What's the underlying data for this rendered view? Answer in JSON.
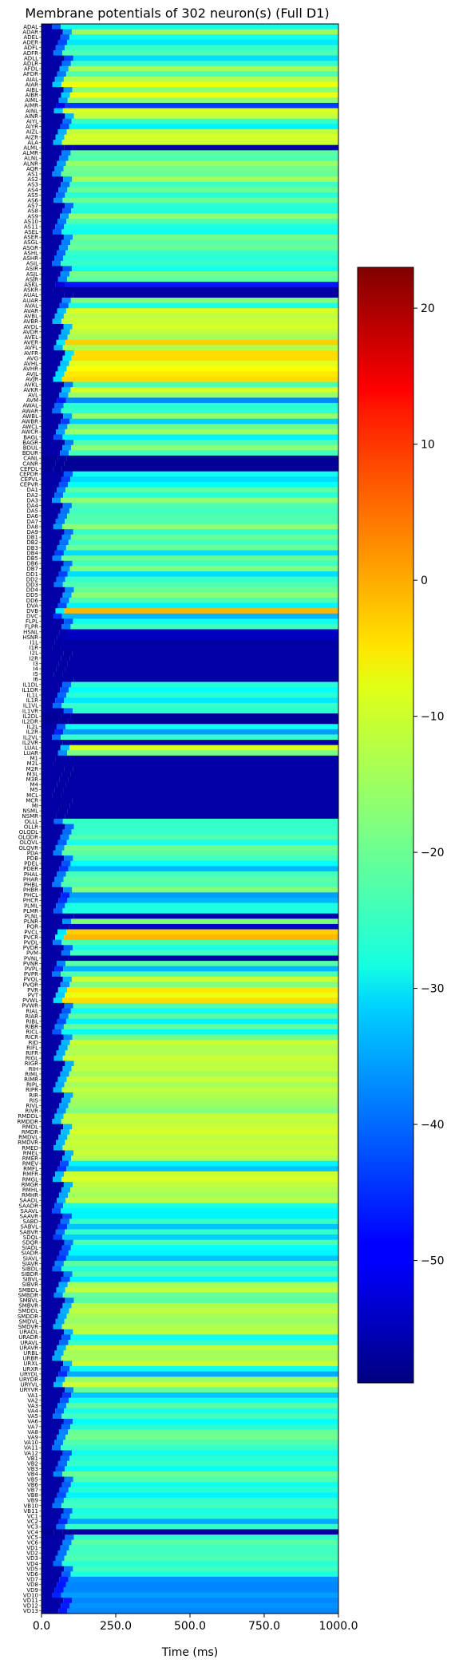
{
  "chart_data": {
    "type": "heatmap",
    "title": "Membrane potentials of 302 neuron(s) (Full D1)",
    "xlabel": "Time (ms)",
    "ylabel": "",
    "x_ticks": [
      "0.0",
      "250.0",
      "500.0",
      "750.0",
      "1000.0"
    ],
    "x_tick_values": [
      0,
      250,
      500,
      750,
      1000
    ],
    "xlim": [
      0,
      1000
    ],
    "colormap": "jet",
    "color_range": [
      -59,
      23
    ],
    "colorbar_ticks": [
      "20",
      "10",
      "0",
      "−10",
      "−20",
      "−30",
      "−40",
      "−50"
    ],
    "colorbar_tick_values": [
      20,
      10,
      0,
      -10,
      -20,
      -30,
      -40,
      -50
    ],
    "neuron_count": 302,
    "neuron_labels_visible": [
      "ADAL",
      "ADAR",
      "ADEL",
      "ADER",
      "ADFL",
      "ADFR",
      "ADLL",
      "ADLR",
      "AFDL",
      "AFDR",
      "AIAL",
      "AIAR",
      "AIBL",
      "AIBR",
      "AIML",
      "AIMR",
      "AINL",
      "AINR",
      "AIYL",
      "AIYR",
      "AIZL",
      "AIZR",
      "ALA",
      "ALML",
      "ALMR",
      "ALNL",
      "ALNR",
      "AQR",
      "AS1",
      "AS2",
      "AS3",
      "AS4",
      "AS5",
      "AS6",
      "AS7",
      "AS8",
      "AS9",
      "AS10",
      "AS11",
      "ASEL",
      "ASER",
      "ASGL",
      "ASGR",
      "ASHL",
      "ASHR",
      "ASIL",
      "ASIR",
      "ASJL",
      "ASJR",
      "ASKL",
      "ASKR",
      "AUAL",
      "AUAR",
      "AVAL",
      "AVAR",
      "AVBL",
      "AVBR",
      "AVDL",
      "AVDR",
      "AVEL",
      "AVER",
      "AVFL",
      "AVFR",
      "AVG",
      "AVHL",
      "AVHR",
      "AVJL",
      "AVJR",
      "AVKL",
      "AVKR",
      "AVL",
      "AVM",
      "AWAL",
      "AWAR",
      "AWBL",
      "AWBR",
      "AWCL",
      "AWCR",
      "BAGL",
      "BAGR",
      "BDUL",
      "BDUR",
      "CANL",
      "CANR",
      "CEPDL",
      "CEPDR",
      "CEPVL",
      "CEPVR",
      "DA1",
      "DA2",
      "DA3",
      "DA4",
      "DA5",
      "DA6",
      "DA7",
      "DA8",
      "DA9",
      "DB1",
      "DB2",
      "DB3",
      "DB4",
      "DB5",
      "DB6",
      "DB7",
      "DD1",
      "DD2",
      "DD3",
      "DD4",
      "DD5",
      "DD6",
      "DVA",
      "DVB",
      "DVC",
      "FLPL",
      "FLPR",
      "HSNL",
      "HSNR",
      "I1L",
      "I1R",
      "I2L",
      "I2R",
      "I3",
      "I4",
      "I5",
      "I6",
      "IL1DL",
      "IL1DR",
      "IL1L",
      "IL1R",
      "IL1VL",
      "IL1VR",
      "IL2DL",
      "IL2DR",
      "IL2L",
      "IL2R",
      "IL2VL",
      "IL2VR",
      "LUAL",
      "LUAR",
      "M1",
      "M2L",
      "M2R",
      "M3L",
      "M3R",
      "M4",
      "M5",
      "MCL",
      "MCR",
      "MI",
      "NSML",
      "NSMR",
      "OLLL",
      "OLLR",
      "OLQDL",
      "OLQDR",
      "OLQVL",
      "OLQVR",
      "PDA",
      "PDB",
      "PDEL",
      "PDER",
      "PHAL",
      "PHAR",
      "PHBL",
      "PHBR",
      "PHCL",
      "PHCR",
      "PLML",
      "PLMR",
      "PLNL",
      "PLNR",
      "PQR",
      "PVCL",
      "PVCR",
      "PVDL",
      "PVDR",
      "PVM",
      "PVNL",
      "PVNR",
      "PVPL",
      "PVPR",
      "PVQL",
      "PVQR",
      "PVR",
      "PVT",
      "PVWL",
      "PVWR",
      "RIAL",
      "RIAR",
      "RIBL",
      "RIBR",
      "RICL",
      "RICR",
      "RID",
      "RIFL",
      "RIFR",
      "RIGL",
      "RIGR",
      "RIH",
      "RIML",
      "RIMR",
      "RIPL",
      "RIPR",
      "RIR",
      "RIS",
      "RIVL",
      "RIVR",
      "RMDDL",
      "RMDDR",
      "RMDL",
      "RMDR",
      "RMDVL",
      "RMDVR",
      "RMED",
      "RMEL",
      "RMER",
      "RMEV",
      "RMFL",
      "RMFR",
      "RMGL",
      "RMGR",
      "RMHL",
      "RMHR",
      "SAADL",
      "SAADR",
      "SAAVL",
      "SAAVR",
      "SABD",
      "SABVL",
      "SABVR",
      "SDQL",
      "SDQR",
      "SIADL",
      "SIADR",
      "SIAVL",
      "SIAVR",
      "SIBDL",
      "SIBDR",
      "SIBVL",
      "SIBVR",
      "SMBDL",
      "SMBDR",
      "SMBVL",
      "SMBVR",
      "SMDDL",
      "SMDDR",
      "SMDVL",
      "SMDVR",
      "URADL",
      "URADR",
      "URAVL",
      "URAVR",
      "URBL",
      "URBR",
      "URXL",
      "URXR",
      "URYDL",
      "URYDR",
      "URYVL",
      "URYVR",
      "VA1",
      "VA2",
      "VA3",
      "VA4",
      "VA5",
      "VA6",
      "VA7",
      "VA8",
      "VA9",
      "VA10",
      "VA11",
      "VA12",
      "VB1",
      "VB2",
      "VB3",
      "VB4",
      "VB5",
      "VB6",
      "VB7",
      "VB8",
      "VB9",
      "VB10",
      "VB11",
      "VC1",
      "VC2",
      "VC3",
      "VC4",
      "VC5",
      "VC6",
      "VD1",
      "VD2",
      "VD3",
      "VD4",
      "VD5",
      "VD6",
      "VD7",
      "VD8",
      "VD9",
      "VD10",
      "VD11",
      "VD12",
      "VD13"
    ],
    "steady_state_by_neuron_mV": [
      -27,
      -16,
      -27,
      -30,
      -24,
      -22,
      -31,
      -24,
      -15,
      -22,
      -14,
      -9,
      -17,
      -9,
      -17,
      -44,
      -11,
      -12,
      -24,
      -29,
      -13,
      -11,
      -12,
      -56,
      -21,
      -22,
      -16,
      -19,
      -20,
      -15,
      -23,
      -20,
      -25,
      -20,
      -25,
      -26,
      -17,
      -22,
      -26,
      -27,
      -19,
      -21,
      -20,
      -24,
      -25,
      -24,
      -27,
      -19,
      -21,
      -47,
      -56,
      -56,
      -18,
      -26,
      -11,
      -13,
      -12,
      -11,
      -13,
      -15,
      -4,
      -14,
      -5,
      -5,
      -10,
      -8,
      -6,
      -5,
      -22,
      -11,
      -16,
      -38,
      -25,
      -24,
      -16,
      -32,
      -19,
      -16,
      -29,
      -22,
      -17,
      -23,
      -57,
      -57,
      -57,
      -27,
      -31,
      -28,
      -21,
      -25,
      -17,
      -22,
      -23,
      -22,
      -22,
      -17,
      -24,
      -20,
      -23,
      -20,
      -31,
      -20,
      -23,
      -18,
      -31,
      -24,
      -22,
      -20,
      -17,
      -22,
      -29,
      -2,
      -34,
      -27,
      -23,
      -54,
      -54,
      -56,
      -56,
      -56,
      -56,
      -56,
      -56,
      -56,
      -56,
      -25,
      -28,
      -25,
      -30,
      -24,
      -25,
      -57,
      -57,
      -27,
      -36,
      -24,
      -56,
      -11,
      -19,
      -56,
      -56,
      -56,
      -56,
      -56,
      -56,
      -56,
      -56,
      -56,
      -56,
      -56,
      -56,
      -24,
      -24,
      -24,
      -22,
      -26,
      -19,
      -21,
      -23,
      -28,
      -34,
      -23,
      -21,
      -22,
      -18,
      -36,
      -34,
      -26,
      -26,
      -55,
      -18,
      -53,
      -4,
      -2,
      -22,
      -26,
      -23,
      -56,
      -21,
      -34,
      -22,
      -12,
      -18,
      -6,
      -9,
      -5,
      -22,
      -27,
      -21,
      -29,
      -20,
      -28,
      -19,
      -12,
      -14,
      -14,
      -12,
      -13,
      -13,
      -15,
      -12,
      -15,
      -13,
      -14,
      -15,
      -16,
      -18,
      -12,
      -13,
      -12,
      -11,
      -13,
      -12,
      -13,
      -12,
      -14,
      -29,
      -33,
      -12,
      -11,
      -13,
      -14,
      -15,
      -13,
      -26,
      -29,
      -29,
      -24,
      -33,
      -24,
      -32,
      -22,
      -28,
      -29,
      -33,
      -21,
      -25,
      -22,
      -29,
      -15,
      -13,
      -20,
      -21,
      -14,
      -13,
      -15,
      -16,
      -14,
      -13,
      -27,
      -24,
      -13,
      -15,
      -15,
      -12,
      -27,
      -35,
      -16,
      -12,
      -20,
      -33,
      -27,
      -21,
      -26,
      -23,
      -28,
      -25,
      -20,
      -19,
      -22,
      -24,
      -27,
      -25,
      -24,
      -28,
      -20,
      -22,
      -27,
      -25,
      -29,
      -24,
      -23,
      -26,
      -25,
      -35,
      -24,
      -57,
      -24,
      -21,
      -23,
      -23,
      -22,
      -25,
      -23,
      -26,
      -37,
      -38,
      -38,
      -36,
      -38,
      -37,
      -38
    ]
  }
}
